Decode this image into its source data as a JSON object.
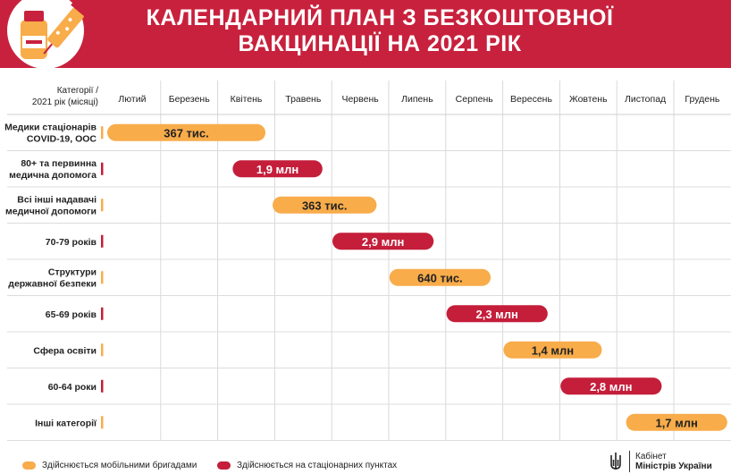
{
  "header": {
    "title_line1": "КАЛЕНДАРНИЙ ПЛАН З БЕЗКОШТОВНОЇ",
    "title_line2": "ВАКЦИНАЦІЇ НА 2021 РІК"
  },
  "colors": {
    "brand_red": "#c8213d",
    "mobile": "#f8ac4a",
    "stationary": "#c41e3a"
  },
  "chart_data": {
    "type": "gantt",
    "corner_label_line1": "Категорії /",
    "corner_label_line2": "2021 рік (місяці)",
    "months": [
      "Лютий",
      "Березень",
      "Квітень",
      "Травень",
      "Червень",
      "Липень",
      "Серпень",
      "Вересень",
      "Жовтень",
      "Листопад",
      "Грудень"
    ],
    "rows": [
      {
        "category": [
          "Медики стаціонарів",
          "COVID-19, ООС"
        ],
        "type": "mobile",
        "start": 0,
        "end": 2.9,
        "label": "367 тис."
      },
      {
        "category": [
          "80+ та первинна",
          "медична допомога"
        ],
        "type": "stationary",
        "start": 2.2,
        "end": 3.9,
        "label": "1,9 млн"
      },
      {
        "category": [
          "Всі інші надавачі",
          "медичної допомоги"
        ],
        "type": "mobile",
        "start": 2.9,
        "end": 4.85,
        "label": "363 тис."
      },
      {
        "category": [
          "70-79 років"
        ],
        "type": "stationary",
        "start": 3.95,
        "end": 5.85,
        "label": "2,9 млн"
      },
      {
        "category": [
          "Структури",
          "державної безпеки"
        ],
        "type": "mobile",
        "start": 4.95,
        "end": 6.85,
        "label": "640 тис."
      },
      {
        "category": [
          "65-69 років"
        ],
        "type": "stationary",
        "start": 5.95,
        "end": 7.85,
        "label": "2,3 млн"
      },
      {
        "category": [
          "Сфера освіти"
        ],
        "type": "mobile",
        "start": 6.95,
        "end": 8.8,
        "label": "1,4 млн"
      },
      {
        "category": [
          "60-64 роки"
        ],
        "type": "stationary",
        "start": 7.95,
        "end": 9.85,
        "label": "2,8 млн"
      },
      {
        "category": [
          "Інші категорії"
        ],
        "type": "mobile",
        "start": 9.1,
        "end": 11,
        "label": "1,7 млн"
      }
    ]
  },
  "legend": {
    "mobile": "Здійснюється мобільними бригадами",
    "stationary": "Здійснюється на стаціонарних пунктах"
  },
  "footer": {
    "cabinet_line1": "Кабінет",
    "cabinet_line2": "Міністрів України"
  }
}
